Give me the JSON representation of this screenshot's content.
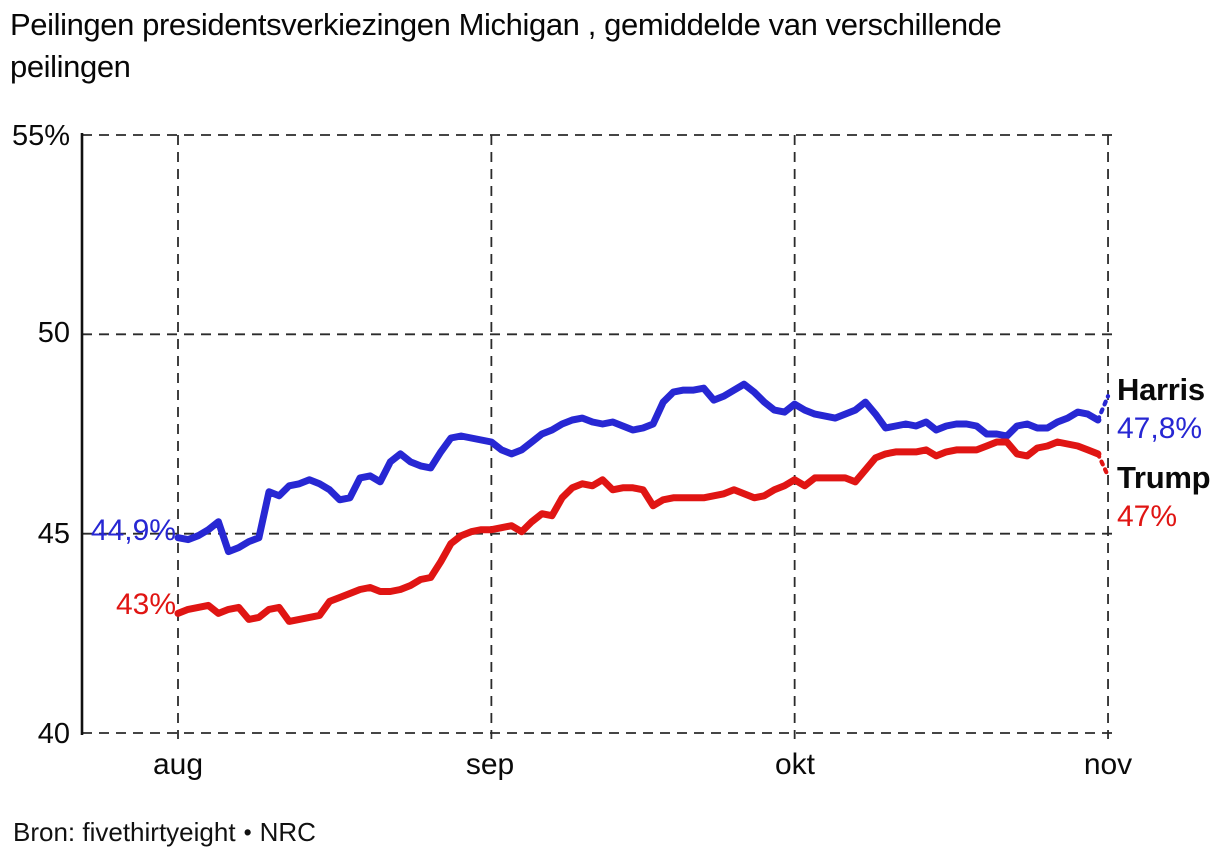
{
  "chart_data": {
    "type": "line",
    "title_lines": [
      "Peilingen presidentsverkiezingen Michigan , gemiddelde van verschillende",
      "peilingen"
    ],
    "y_axis": {
      "min": 40,
      "max": 55,
      "unit": "%",
      "ticks": [
        {
          "value": 55,
          "label": "55%"
        },
        {
          "value": 50,
          "label": "50"
        },
        {
          "value": 45,
          "label": "45"
        },
        {
          "value": 40,
          "label": "40"
        }
      ]
    },
    "x_axis": {
      "unit": "day-offset-from-1-aug",
      "ticks": [
        {
          "day": 0,
          "label": "aug"
        },
        {
          "day": 31,
          "label": "sep"
        },
        {
          "day": 61,
          "label": "okt"
        },
        {
          "day": 92,
          "label": "nov"
        }
      ]
    },
    "grid": true,
    "legend_position": "right-of-line-ends",
    "style": {
      "grid_color": "#2b2b2b",
      "axis_color": "#111111"
    },
    "series": [
      {
        "name": "Harris",
        "color": "#2727d3",
        "start_label": "44,9%",
        "end_label": "47,8%",
        "start_value": 44.9,
        "end_value": 47.8,
        "values": [
          44.9,
          44.85,
          44.95,
          45.1,
          45.3,
          44.55,
          44.65,
          44.8,
          44.9,
          46.05,
          45.95,
          46.2,
          46.25,
          46.35,
          46.25,
          46.1,
          45.85,
          45.9,
          46.4,
          46.45,
          46.3,
          46.8,
          47.0,
          46.8,
          46.7,
          46.65,
          47.05,
          47.4,
          47.45,
          47.4,
          47.35,
          47.3,
          47.1,
          47.0,
          47.1,
          47.3,
          47.5,
          47.6,
          47.75,
          47.85,
          47.9,
          47.8,
          47.75,
          47.8,
          47.7,
          47.6,
          47.65,
          47.75,
          48.3,
          48.55,
          48.6,
          48.6,
          48.65,
          48.35,
          48.45,
          48.6,
          48.75,
          48.55,
          48.3,
          48.1,
          48.05,
          48.25,
          48.1,
          48.0,
          47.95,
          47.9,
          48.0,
          48.1,
          48.3,
          48.0,
          47.65,
          47.7,
          47.75,
          47.7,
          47.8,
          47.6,
          47.7,
          47.75,
          47.75,
          47.7,
          47.5,
          47.5,
          47.45,
          47.7,
          47.75,
          47.65,
          47.65,
          47.8,
          47.9,
          48.05,
          48.0,
          47.85
        ],
        "projection_value": 48.45
      },
      {
        "name": "Trump",
        "color": "#e01513",
        "start_label": "43%",
        "end_label": "47%",
        "start_value": 43.0,
        "end_value": 47.0,
        "values": [
          43.0,
          43.1,
          43.15,
          43.2,
          43.0,
          43.1,
          43.15,
          42.85,
          42.9,
          43.1,
          43.15,
          42.8,
          42.85,
          42.9,
          42.95,
          43.3,
          43.4,
          43.5,
          43.6,
          43.65,
          43.55,
          43.55,
          43.6,
          43.7,
          43.85,
          43.9,
          44.3,
          44.75,
          44.95,
          45.05,
          45.1,
          45.1,
          45.15,
          45.2,
          45.05,
          45.3,
          45.5,
          45.45,
          45.9,
          46.15,
          46.25,
          46.2,
          46.35,
          46.1,
          46.15,
          46.15,
          46.1,
          45.7,
          45.85,
          45.9,
          45.9,
          45.9,
          45.9,
          45.95,
          46.0,
          46.1,
          46.0,
          45.9,
          45.95,
          46.1,
          46.2,
          46.35,
          46.2,
          46.4,
          46.4,
          46.4,
          46.4,
          46.3,
          46.6,
          46.9,
          47.0,
          47.05,
          47.05,
          47.05,
          47.1,
          46.95,
          47.05,
          47.1,
          47.1,
          47.1,
          47.2,
          47.3,
          47.3,
          47.0,
          46.95,
          47.15,
          47.2,
          47.3,
          47.25,
          47.2,
          47.1,
          47.0
        ],
        "projection_value": 46.45
      }
    ]
  },
  "source": {
    "label": "Bron: fivethirtyeight",
    "bullet": "•",
    "org": "NRC"
  }
}
